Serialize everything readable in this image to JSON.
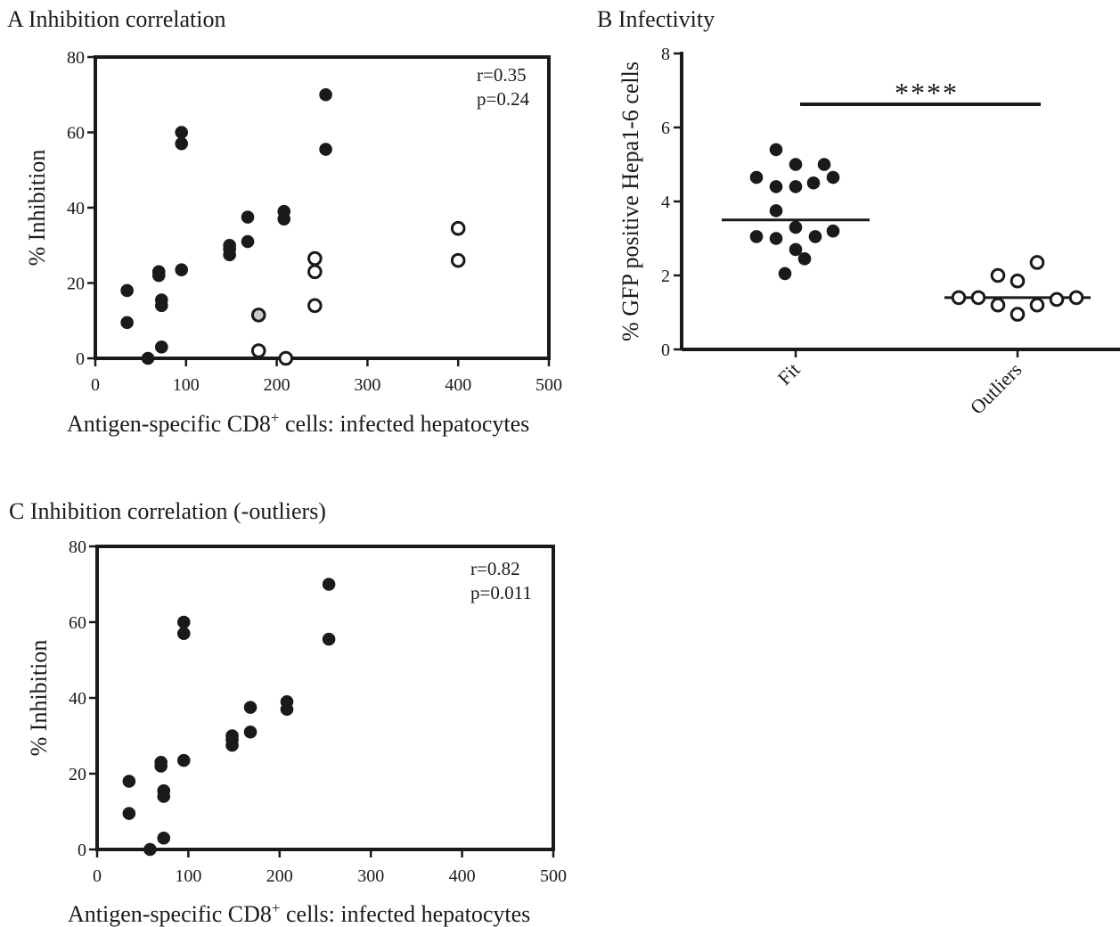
{
  "chart_data": [
    {
      "panel": "A",
      "title": "A Inhibition correlation",
      "type": "scatter",
      "xlabel": "Antigen-specific CD8",
      "xlabel_sup": "+",
      "xlabel_tail": " cells: infected hepatocytes",
      "ylabel": "% Inhibition",
      "xlim": [
        0,
        500
      ],
      "ylim": [
        0,
        80
      ],
      "xticks": [
        0,
        100,
        200,
        300,
        400,
        500
      ],
      "yticks": [
        0,
        20,
        40,
        60,
        80
      ],
      "annotation": [
        "r=0.35",
        "p=0.24"
      ],
      "series": [
        {
          "marker": "filled",
          "x": [
            35,
            35,
            58,
            70,
            70,
            73,
            73,
            73,
            95,
            95,
            95,
            148,
            148,
            148,
            168,
            168,
            208,
            208,
            254,
            254
          ],
          "y": [
            18,
            9.5,
            0,
            23,
            22,
            15.5,
            14,
            3,
            60,
            57,
            23.5,
            30,
            29,
            27.5,
            37.5,
            31,
            39,
            37,
            70,
            55.5
          ]
        },
        {
          "marker": "grey",
          "x": [
            180
          ],
          "y": [
            11.5
          ]
        },
        {
          "marker": "open",
          "x": [
            180,
            210,
            242,
            242,
            242,
            400,
            400
          ],
          "y": [
            2,
            0,
            26.5,
            23,
            14,
            34.5,
            26
          ]
        }
      ]
    },
    {
      "panel": "B",
      "title": "B Infectivity",
      "type": "scatter",
      "ylabel": "% GFP positive Hepa1-6 cells",
      "categories": [
        "Fit",
        "Outliers"
      ],
      "ylim": [
        0,
        8
      ],
      "yticks": [
        0,
        2,
        4,
        6,
        8
      ],
      "significance": "****",
      "series": [
        {
          "category": "Fit",
          "marker": "filled",
          "mean": 3.5,
          "values": [
            5.4,
            4.65,
            4.4,
            5.0,
            4.4,
            4.5,
            5.0,
            4.65,
            3.75,
            3.05,
            3.0,
            3.3,
            3.05,
            3.2,
            2.7,
            2.45,
            2.05
          ]
        },
        {
          "category": "Outliers",
          "marker": "open",
          "mean": 1.4,
          "values": [
            1.4,
            1.4,
            2.0,
            1.2,
            1.85,
            0.95,
            1.2,
            2.35,
            1.35,
            1.4
          ]
        }
      ]
    },
    {
      "panel": "C",
      "title": "C Inhibition correlation (-outliers)",
      "type": "scatter",
      "xlabel": "Antigen-specific CD8",
      "xlabel_sup": "+",
      "xlabel_tail": " cells: infected hepatocytes",
      "ylabel": "% Inhibition",
      "xlim": [
        0,
        500
      ],
      "ylim": [
        0,
        80
      ],
      "xticks": [
        0,
        100,
        200,
        300,
        400,
        500
      ],
      "yticks": [
        0,
        20,
        40,
        60,
        80
      ],
      "annotation": [
        "r=0.82",
        "p=0.011"
      ],
      "series": [
        {
          "marker": "filled",
          "x": [
            35,
            35,
            58,
            70,
            70,
            73,
            73,
            73,
            95,
            95,
            95,
            148,
            148,
            148,
            168,
            168,
            208,
            208,
            254,
            254
          ],
          "y": [
            18,
            9.5,
            0,
            23,
            22,
            15.5,
            14,
            3,
            60,
            57,
            23.5,
            30,
            29,
            27.5,
            37.5,
            31,
            39,
            37,
            70,
            55.5
          ]
        }
      ]
    }
  ]
}
